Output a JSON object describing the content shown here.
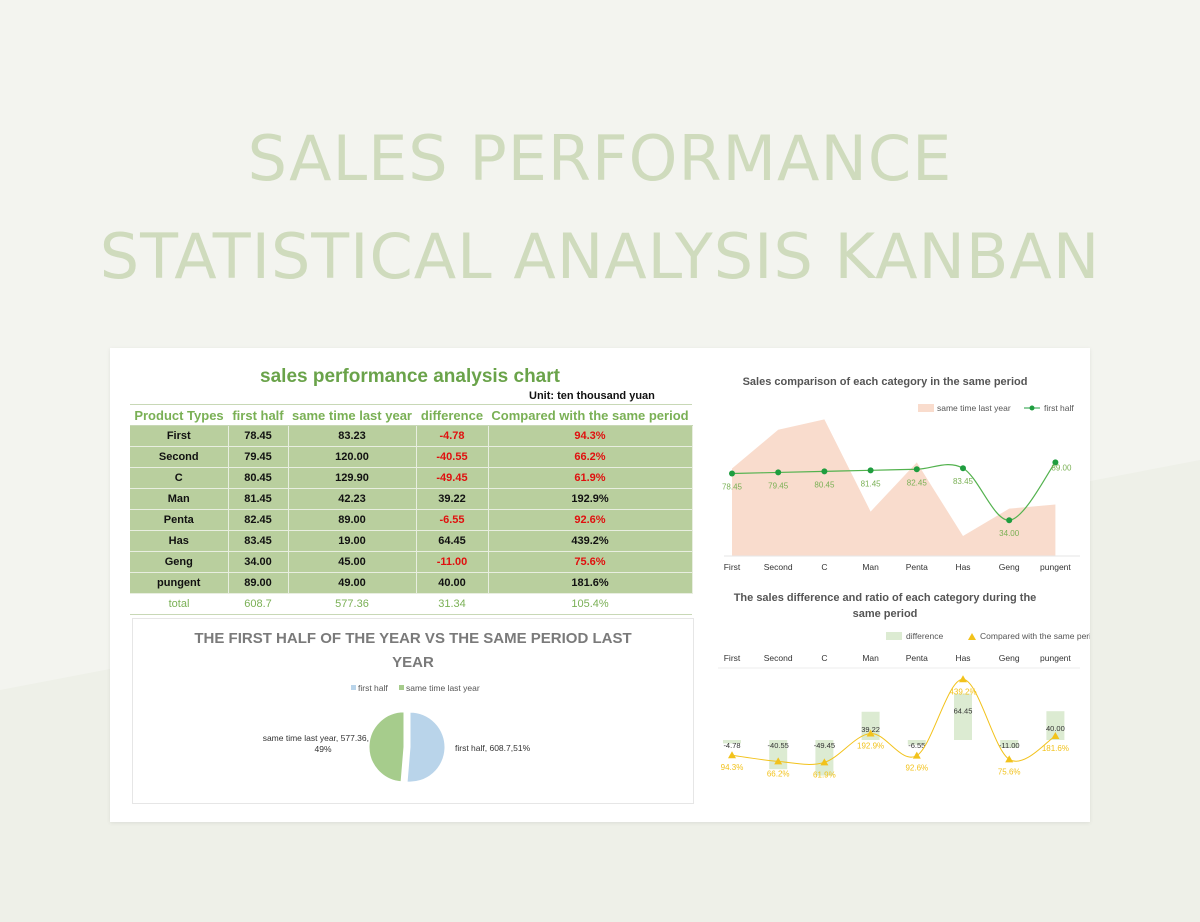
{
  "page": {
    "hero_line1": "SALES PERFORMANCE",
    "hero_line2": "STATISTICAL ANALYSIS KANBAN",
    "colors": {
      "background": "#f3f4ef",
      "hero_text": "#cfdbbd",
      "accent_green": "#6aa34a",
      "table_fill": "#b9cf9e",
      "negative": "#e0100f"
    }
  },
  "table": {
    "title": "sales performance analysis chart",
    "unit": "Unit: ten thousand yuan",
    "headers": [
      "Product Types",
      "first half",
      "same time last year",
      "difference",
      "Compared with the same period"
    ],
    "rows": [
      [
        "First",
        "78.45",
        "83.23",
        "-4.78",
        "94.3%"
      ],
      [
        "Second",
        "79.45",
        "120.00",
        "-40.55",
        "66.2%"
      ],
      [
        "C",
        "80.45",
        "129.90",
        "-49.45",
        "61.9%"
      ],
      [
        "Man",
        "81.45",
        "42.23",
        "39.22",
        "192.9%"
      ],
      [
        "Penta",
        "82.45",
        "89.00",
        "-6.55",
        "92.6%"
      ],
      [
        "Has",
        "83.45",
        "19.00",
        "64.45",
        "439.2%"
      ],
      [
        "Geng",
        "34.00",
        "45.00",
        "-11.00",
        "75.6%"
      ],
      [
        "pungent",
        "89.00",
        "49.00",
        "40.00",
        "181.6%"
      ]
    ],
    "total": [
      "total",
      "608.7",
      "577.36",
      "31.34",
      "105.4%"
    ]
  },
  "chart_data": [
    {
      "type": "pie",
      "title": "THE FIRST HALF OF THE YEAR VS THE SAME PERIOD LAST YEAR",
      "legend": [
        "first half",
        "same time last year"
      ],
      "legend_position": "top",
      "slices": [
        {
          "name": "first half",
          "value": 608.7,
          "percent": 51,
          "label": "first half, 608.7,51%",
          "color": "#b9d4ea"
        },
        {
          "name": "same time last year",
          "value": 577.36,
          "percent": 49,
          "label": "same time last year, 577.36, 49%",
          "color": "#a6cc8c"
        }
      ]
    },
    {
      "type": "line",
      "title": "Sales comparison of each category in the same period",
      "categories": [
        "First",
        "Second",
        "C",
        "Man",
        "Penta",
        "Has",
        "Geng",
        "pungent"
      ],
      "legend_position": "top",
      "series": [
        {
          "name": "same time last year",
          "type": "area",
          "color": "#f9dccd",
          "values": [
            83.23,
            120.0,
            129.9,
            42.23,
            89.0,
            19.0,
            45.0,
            49.0
          ]
        },
        {
          "name": "first half",
          "type": "line",
          "color": "#1f9d3f",
          "values": [
            78.45,
            79.45,
            80.45,
            81.45,
            82.45,
            83.45,
            34.0,
            89.0
          ],
          "labels": [
            "78.45",
            "79.45",
            "80.45",
            "81.45",
            "82.45",
            "83.45",
            "34.00",
            "89.00"
          ]
        }
      ],
      "ylim": [
        0,
        135
      ]
    },
    {
      "type": "bar",
      "title": "The sales difference and ratio of each category during the same period",
      "categories": [
        "First",
        "Second",
        "C",
        "Man",
        "Penta",
        "Has",
        "Geng",
        "pungent"
      ],
      "legend_position": "top",
      "series": [
        {
          "name": "difference",
          "type": "bar",
          "color": "#dcebd2",
          "values": [
            -4.78,
            -40.55,
            -49.45,
            39.22,
            -6.55,
            64.45,
            -11.0,
            40.0
          ],
          "labels": [
            "-4.78",
            "-40.55",
            "-49.45",
            "39.22",
            "-6.55",
            "64.45",
            "-11.00",
            "40.00"
          ]
        },
        {
          "name": "Compared with the same period",
          "type": "line",
          "color": "#f2c21b",
          "values": [
            94.3,
            66.2,
            61.9,
            192.9,
            92.6,
            439.2,
            75.6,
            181.6
          ],
          "labels": [
            "94.3%",
            "66.2%",
            "61.9%",
            "192.9%",
            "92.6%",
            "439.2%",
            "75.6%",
            "181.6%"
          ]
        }
      ]
    }
  ]
}
